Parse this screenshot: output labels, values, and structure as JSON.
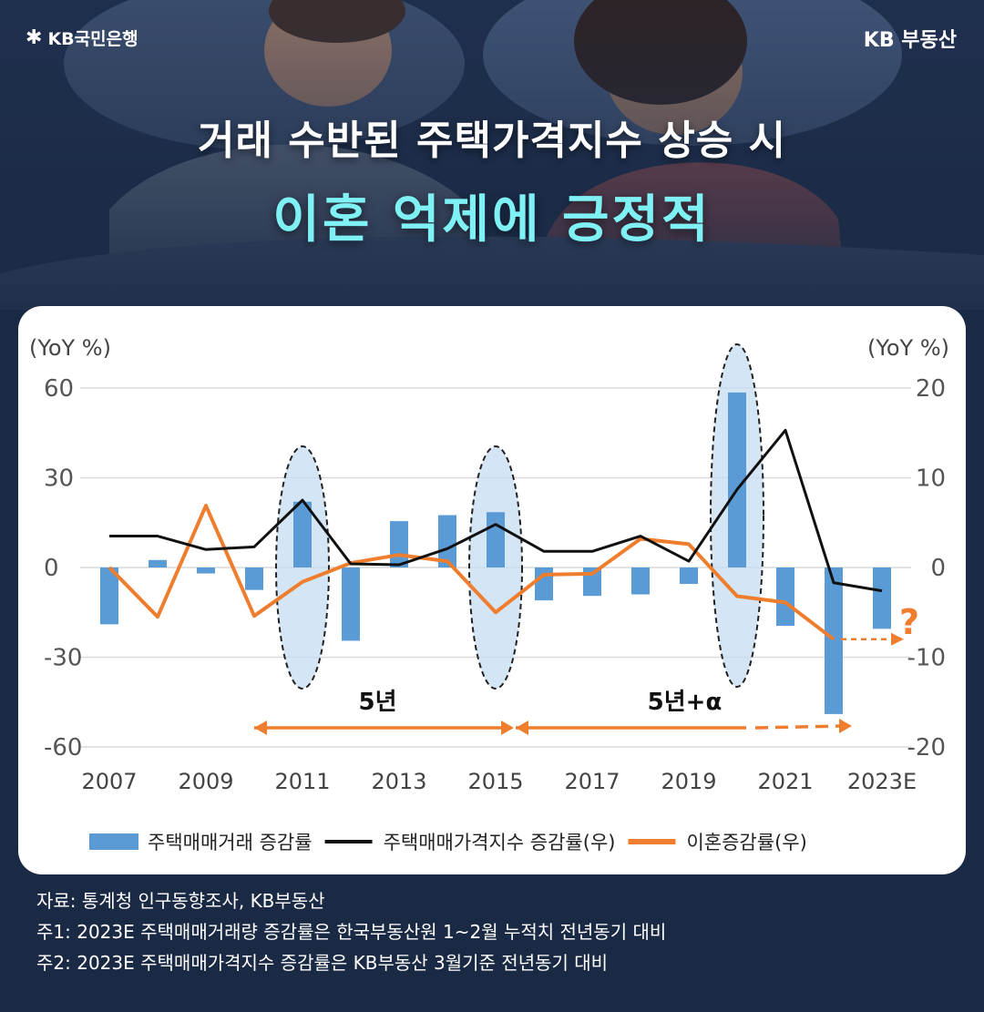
{
  "header": {
    "brand_left": "KB국민은행",
    "brand_left_icon": "kb-star-icon",
    "brand_right": "KB 부동산",
    "title_line1": "거래 수반된 주택가격지수 상승 시",
    "title_line2": "이혼 억제에 긍정적"
  },
  "colors": {
    "background": "#1b2a44",
    "title_accent": "#7ff0f4",
    "bar": "#5b9bd5",
    "price_line": "#111111",
    "divorce_line": "#ef7d2e",
    "highlight_fill": "#c5dcf2"
  },
  "chart_data": {
    "type": "bar",
    "left_axis_unit": "(YoY %)",
    "right_axis_unit": "(YoY %)",
    "left_ylim": [
      -60,
      60
    ],
    "left_ticks": [
      "60",
      "30",
      "0",
      "-30",
      "-60"
    ],
    "right_ylim": [
      -20,
      20
    ],
    "right_ticks": [
      "20",
      "10",
      "0",
      "-10",
      "-20"
    ],
    "x_tick_labels": [
      "2007",
      "2009",
      "2011",
      "2013",
      "2015",
      "2017",
      "2019",
      "2021",
      "2023E"
    ],
    "categories": [
      "2007",
      "2008",
      "2009",
      "2010",
      "2011",
      "2012",
      "2013",
      "2014",
      "2015",
      "2016",
      "2017",
      "2018",
      "2019",
      "2020",
      "2021",
      "2022",
      "2023E"
    ],
    "series": [
      {
        "name": "주택매매거래 증감률",
        "axis": "left",
        "kind": "bar",
        "values": [
          -19,
          2.5,
          -2,
          -7.5,
          22,
          -24.5,
          15.5,
          17.5,
          18.5,
          -11,
          -9.5,
          -9,
          -5.5,
          58.5,
          -19.5,
          -49,
          -20.5
        ]
      },
      {
        "name": "주택매매가격지수 증감률(우)",
        "axis": "right",
        "kind": "line",
        "values": [
          3.5,
          3.5,
          2,
          2.3,
          7.5,
          0.4,
          0.3,
          2.1,
          4.8,
          1.8,
          1.8,
          3.5,
          0.7,
          8.7,
          15.3,
          -1.7,
          -2.6
        ]
      },
      {
        "name": "이혼증감률(우)",
        "axis": "right",
        "kind": "line",
        "values": [
          0,
          -5.5,
          6.9,
          -5.4,
          -1.6,
          0.5,
          1.4,
          0.7,
          -5,
          -0.8,
          -0.7,
          3.2,
          2.6,
          -3.2,
          -3.9,
          -8,
          null
        ]
      }
    ],
    "divorce_projection": {
      "from": -8,
      "to": -8,
      "label": "?"
    },
    "highlight_years": [
      "2011",
      "2015",
      "2020"
    ],
    "annotations": [
      {
        "label": "5년",
        "from": "2010",
        "to": "2015"
      },
      {
        "label": "5년+α",
        "from": "2015",
        "to": "2022"
      }
    ],
    "legend_position": "bottom"
  },
  "notes": [
    "자료: 통계청 인구동향조사, KB부동산",
    "주1: 2023E 주택매매거래량 증감률은 한국부동산원 1~2월 누적치 전년동기 대비",
    "주2: 2023E 주택매매가격지수 증감률은 KB부동산 3월기준 전년동기 대비"
  ]
}
